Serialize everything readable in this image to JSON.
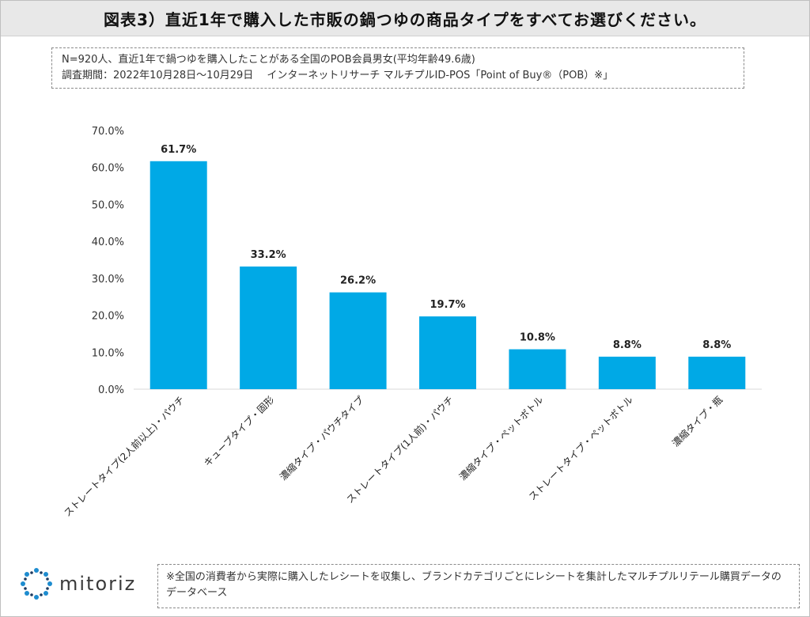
{
  "header": {
    "title": "図表3）直近1年で購入した市販の鍋つゆの商品タイプをすべてお選びください。"
  },
  "note": {
    "line1": "N=920人、直近1年で鍋つゆを購入したことがある全国のPOB会員男女(平均年齢49.6歳)",
    "line2": "調査期間：2022年10月28日〜10月29日　 インターネットリサーチ マルチプルID-POS「Point of Buy®（POB）※」"
  },
  "footer": {
    "note": "※全国の消費者から実際に購入したレシートを収集し、ブランドカテゴリごとにレシートを集計したマルチプルリテール購買データのデータベース",
    "logo_text": "mitoriz"
  },
  "colors": {
    "bar": "#00a9e6",
    "axis": "#d9d9d9",
    "logo_accent": "#1e8ccf"
  },
  "chart_data": {
    "type": "bar",
    "categories": [
      "ストレートタイプ(2人前以上)・パウチ",
      "キューブタイプ・固形",
      "濃縮タイプ・パウチタイプ",
      "ストレートタイプ(1人前)・パウチ",
      "濃縮タイプ・ペットボトル",
      "ストレートタイプ・ペットボトル",
      "濃縮タイプ・瓶"
    ],
    "values": [
      61.7,
      33.2,
      26.2,
      19.7,
      10.8,
      8.8,
      8.8
    ],
    "data_labels": [
      "61.7%",
      "33.2%",
      "26.2%",
      "19.7%",
      "10.8%",
      "8.8%",
      "8.8%"
    ],
    "yticks": [
      "0.0%",
      "10.0%",
      "20.0%",
      "30.0%",
      "40.0%",
      "50.0%",
      "60.0%",
      "70.0%"
    ],
    "ylim": [
      0,
      70
    ],
    "grid": false,
    "legend": "none"
  }
}
